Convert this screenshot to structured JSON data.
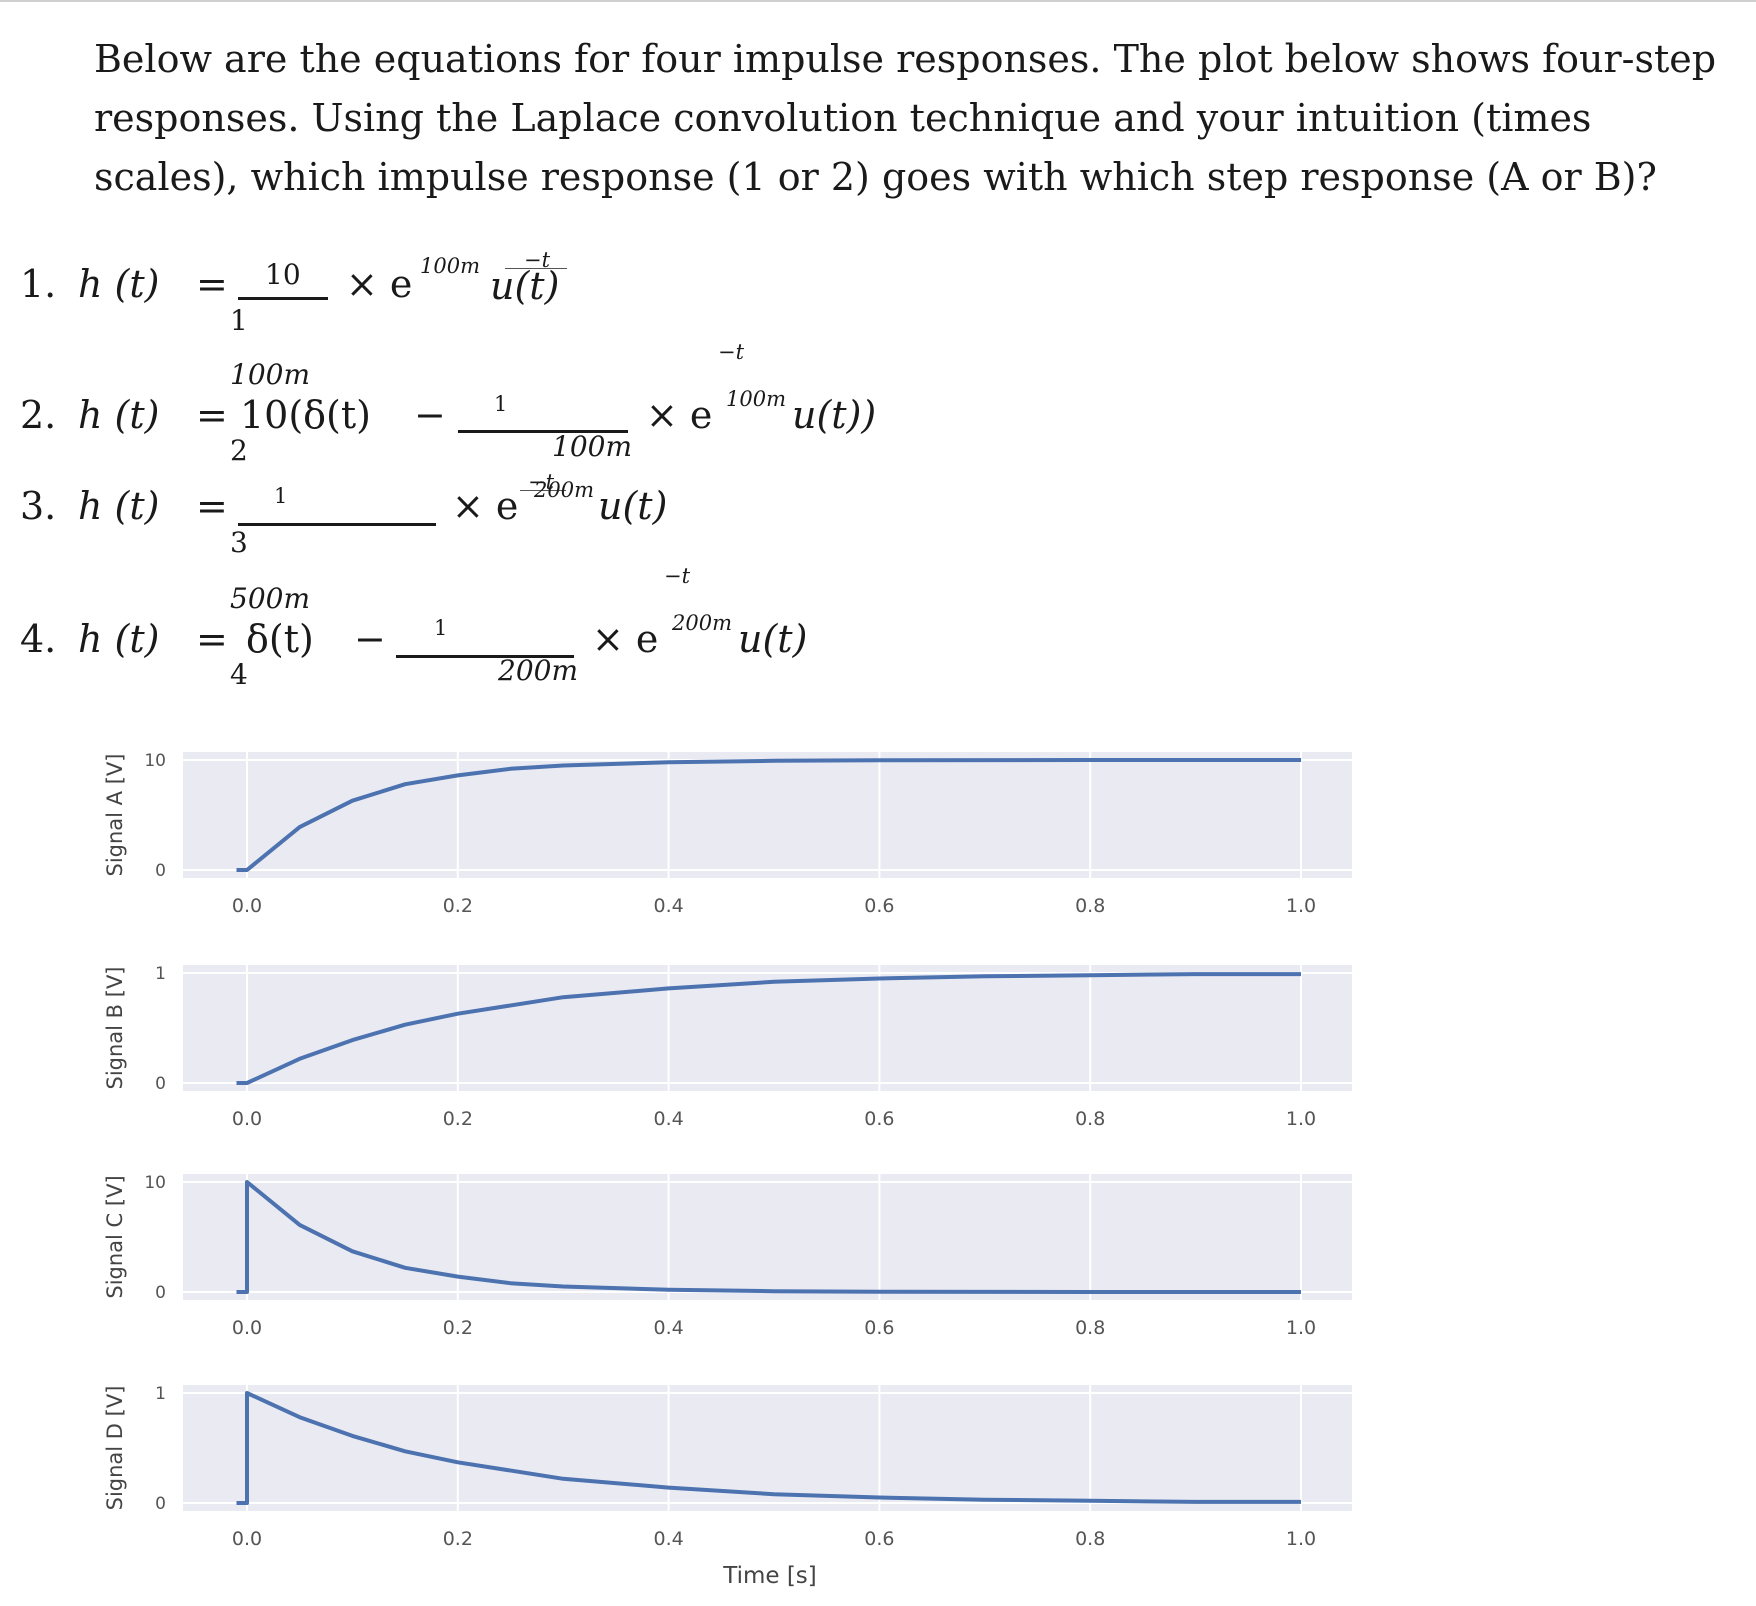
{
  "question": "Below are the equations for four impulse responses. The plot below shows four-step responses.  Using the Laplace convolution technique and your intuition (times scales), which impulse response (1 or 2) goes with which step response (A or B)?",
  "equations": {
    "eq1": {
      "number": "1.",
      "lhs": "h (t)",
      "eq": "=",
      "sub": "1",
      "num": "10",
      "denom": "100m",
      "times": "× e",
      "exp_num": "−t",
      "exp_den": "100m",
      "tail": "u(t)"
    },
    "eq2": {
      "number": "2.",
      "lhs": "h (t)",
      "eq": "=",
      "sub": "2",
      "head": "10(δ(t)",
      "minus": "−",
      "num": "1",
      "denom": "100m",
      "times": "× e",
      "exp_num": "−t",
      "exp_den": "100m",
      "tail": "u(t))"
    },
    "eq3": {
      "number": "3.",
      "lhs": "h (t)",
      "eq": "=",
      "sub": "3",
      "num": "1",
      "denom": "500m",
      "times": "× e",
      "exp_num": "−t",
      "exp_den": "200m",
      "tail": "u(t)"
    },
    "eq4": {
      "number": "4.",
      "lhs": "h (t)",
      "eq": "=",
      "sub": "4",
      "head": "δ(t)",
      "minus": "−",
      "num": "1",
      "denom": "200m",
      "times": "× e",
      "exp_num": "−t",
      "exp_den": "200m",
      "tail": "u(t)"
    }
  },
  "colors": {
    "plot_bg": "#eaeaf2",
    "line": "#4c72b0",
    "grid": "#ffffff",
    "tick": "#555555"
  },
  "chart_data": [
    {
      "type": "line",
      "ylabel": "Signal A [V]",
      "yticks": [
        "0",
        "10"
      ],
      "ylim": [
        0,
        10
      ],
      "xticks": [
        "0.0",
        "0.2",
        "0.4",
        "0.6",
        "0.8",
        "1.0"
      ],
      "xlim": [
        -0.01,
        1.0
      ],
      "x": [
        -0.01,
        0,
        0.05,
        0.1,
        0.15,
        0.2,
        0.25,
        0.3,
        0.4,
        0.5,
        0.6,
        0.8,
        1.0
      ],
      "y": [
        0,
        0,
        3.9,
        6.3,
        7.8,
        8.6,
        9.2,
        9.5,
        9.8,
        9.93,
        9.98,
        10,
        10
      ]
    },
    {
      "type": "line",
      "ylabel": "Signal B [V]",
      "yticks": [
        "0",
        "1"
      ],
      "ylim": [
        0,
        1
      ],
      "xticks": [
        "0.0",
        "0.2",
        "0.4",
        "0.6",
        "0.8",
        "1.0"
      ],
      "xlim": [
        -0.01,
        1.0
      ],
      "x": [
        -0.01,
        0,
        0.05,
        0.1,
        0.15,
        0.2,
        0.3,
        0.4,
        0.5,
        0.6,
        0.7,
        0.8,
        0.9,
        1.0
      ],
      "y": [
        0,
        0,
        0.22,
        0.39,
        0.53,
        0.63,
        0.78,
        0.86,
        0.92,
        0.95,
        0.97,
        0.98,
        0.99,
        0.99
      ]
    },
    {
      "type": "line",
      "ylabel": "Signal C [V]",
      "yticks": [
        "0",
        "10"
      ],
      "ylim": [
        0,
        10
      ],
      "xticks": [
        "0.0",
        "0.2",
        "0.4",
        "0.6",
        "0.8",
        "1.0"
      ],
      "xlim": [
        -0.01,
        1.0
      ],
      "x": [
        -0.01,
        0,
        0,
        0.05,
        0.1,
        0.15,
        0.2,
        0.25,
        0.3,
        0.4,
        0.5,
        0.6,
        0.8,
        1.0
      ],
      "y": [
        0,
        0,
        10,
        6.1,
        3.7,
        2.2,
        1.4,
        0.8,
        0.5,
        0.2,
        0.07,
        0.02,
        0,
        0
      ]
    },
    {
      "type": "line",
      "ylabel": "Signal D [V]",
      "yticks": [
        "0",
        "1"
      ],
      "ylim": [
        0,
        1
      ],
      "xticks": [
        "0.0",
        "0.2",
        "0.4",
        "0.6",
        "0.8",
        "1.0"
      ],
      "xlim": [
        -0.01,
        1.0
      ],
      "xlabel": "Time [s]",
      "x": [
        -0.01,
        0,
        0,
        0.05,
        0.1,
        0.15,
        0.2,
        0.3,
        0.4,
        0.5,
        0.6,
        0.7,
        0.8,
        0.9,
        1.0
      ],
      "y": [
        0,
        0,
        1,
        0.78,
        0.61,
        0.47,
        0.37,
        0.22,
        0.14,
        0.08,
        0.05,
        0.03,
        0.02,
        0.01,
        0.01
      ]
    }
  ]
}
